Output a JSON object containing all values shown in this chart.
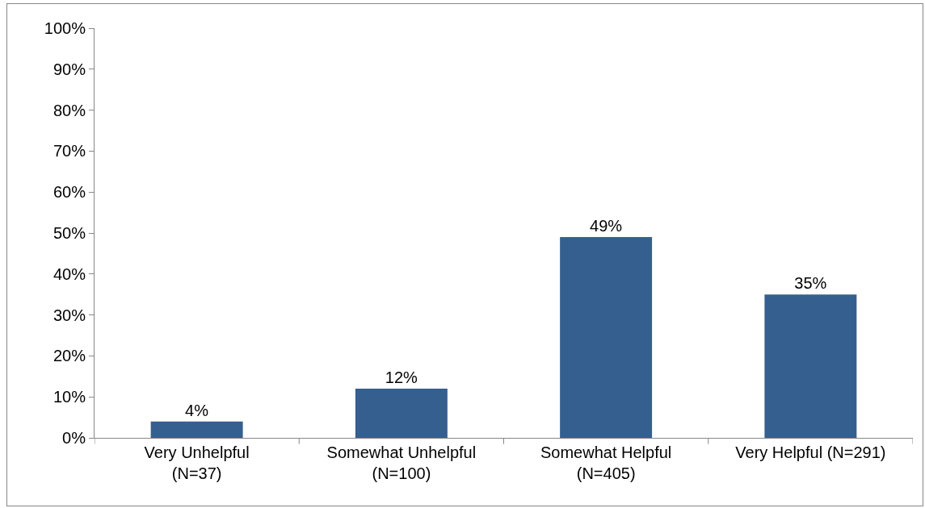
{
  "chart_data": {
    "type": "bar",
    "categories": [
      "Very Unhelpful\n(N=37)",
      "Somewhat Unhelpful\n(N=100)",
      "Somewhat Helpful\n(N=405)",
      "Very Helpful (N=291)"
    ],
    "values": [
      4,
      12,
      49,
      35
    ],
    "value_labels": [
      "4%",
      "12%",
      "49%",
      "35%"
    ],
    "color": "#355f8e",
    "ylim": [
      0,
      100
    ],
    "yticks": [
      {
        "value": 0,
        "label": "0%"
      },
      {
        "value": 10,
        "label": "10%"
      },
      {
        "value": 20,
        "label": "20%"
      },
      {
        "value": 30,
        "label": "30%"
      },
      {
        "value": 40,
        "label": "40%"
      },
      {
        "value": 50,
        "label": "50%"
      },
      {
        "value": 60,
        "label": "60%"
      },
      {
        "value": 70,
        "label": "70%"
      },
      {
        "value": 80,
        "label": "80%"
      },
      {
        "value": 90,
        "label": "90%"
      },
      {
        "value": 100,
        "label": "100%"
      }
    ],
    "grid": false
  }
}
